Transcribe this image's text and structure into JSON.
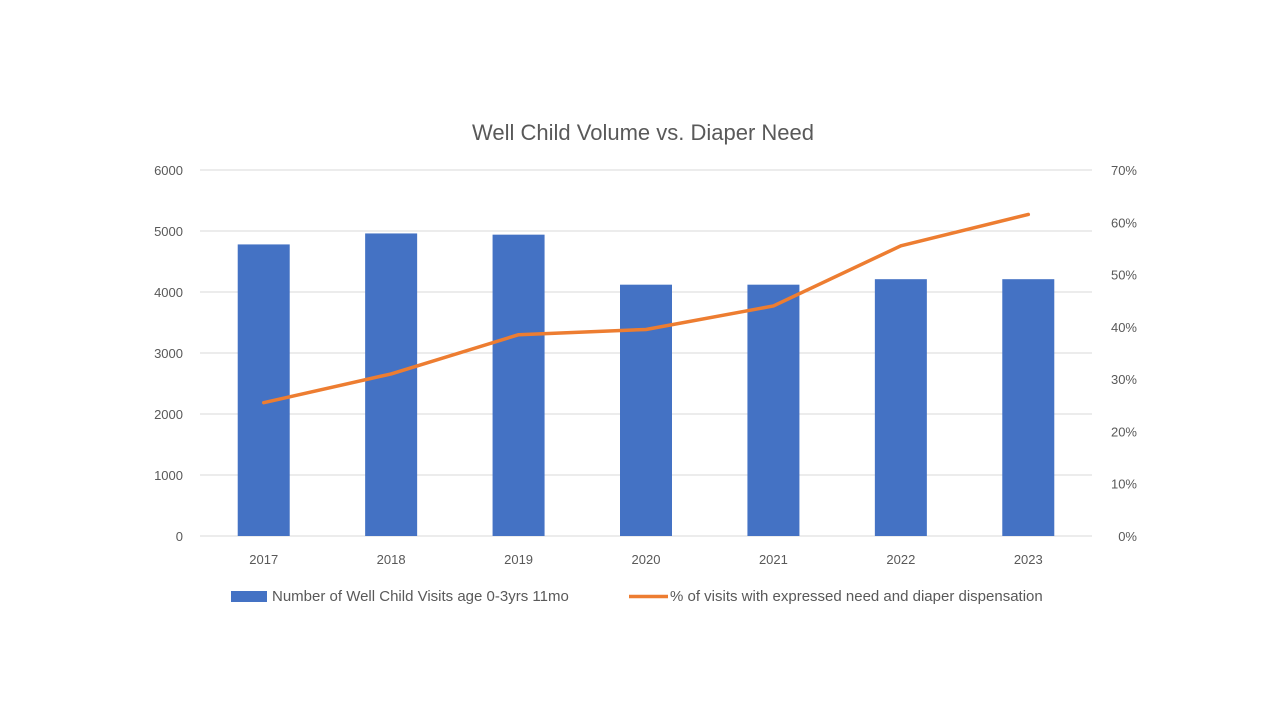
{
  "chart_data": {
    "type": "bar",
    "title": "Well Child Volume vs. Diaper Need",
    "categories": [
      "2017",
      "2018",
      "2019",
      "2020",
      "2021",
      "2022",
      "2023"
    ],
    "series": [
      {
        "name": "Number of Well Child Visits age 0-3yrs 11mo",
        "type": "bar",
        "axis": "left",
        "color": "#4472C4",
        "values": [
          4780,
          4960,
          4940,
          4120,
          4120,
          4210,
          4210
        ]
      },
      {
        "name": "% of visits with expressed need and diaper dispensation",
        "type": "line",
        "axis": "right",
        "color": "#ED7D31",
        "values": [
          25.5,
          31,
          38.5,
          39.5,
          44,
          55.5,
          61.5
        ]
      }
    ],
    "y_left": {
      "ylim": [
        0,
        6000
      ],
      "ticks": [
        "0",
        "1000",
        "2000",
        "3000",
        "4000",
        "5000",
        "6000"
      ]
    },
    "y_right": {
      "ylim": [
        0,
        70
      ],
      "ticks": [
        "0%",
        "10%",
        "20%",
        "30%",
        "40%",
        "50%",
        "60%",
        "70%"
      ]
    },
    "grid": true,
    "legend": "bottom"
  }
}
